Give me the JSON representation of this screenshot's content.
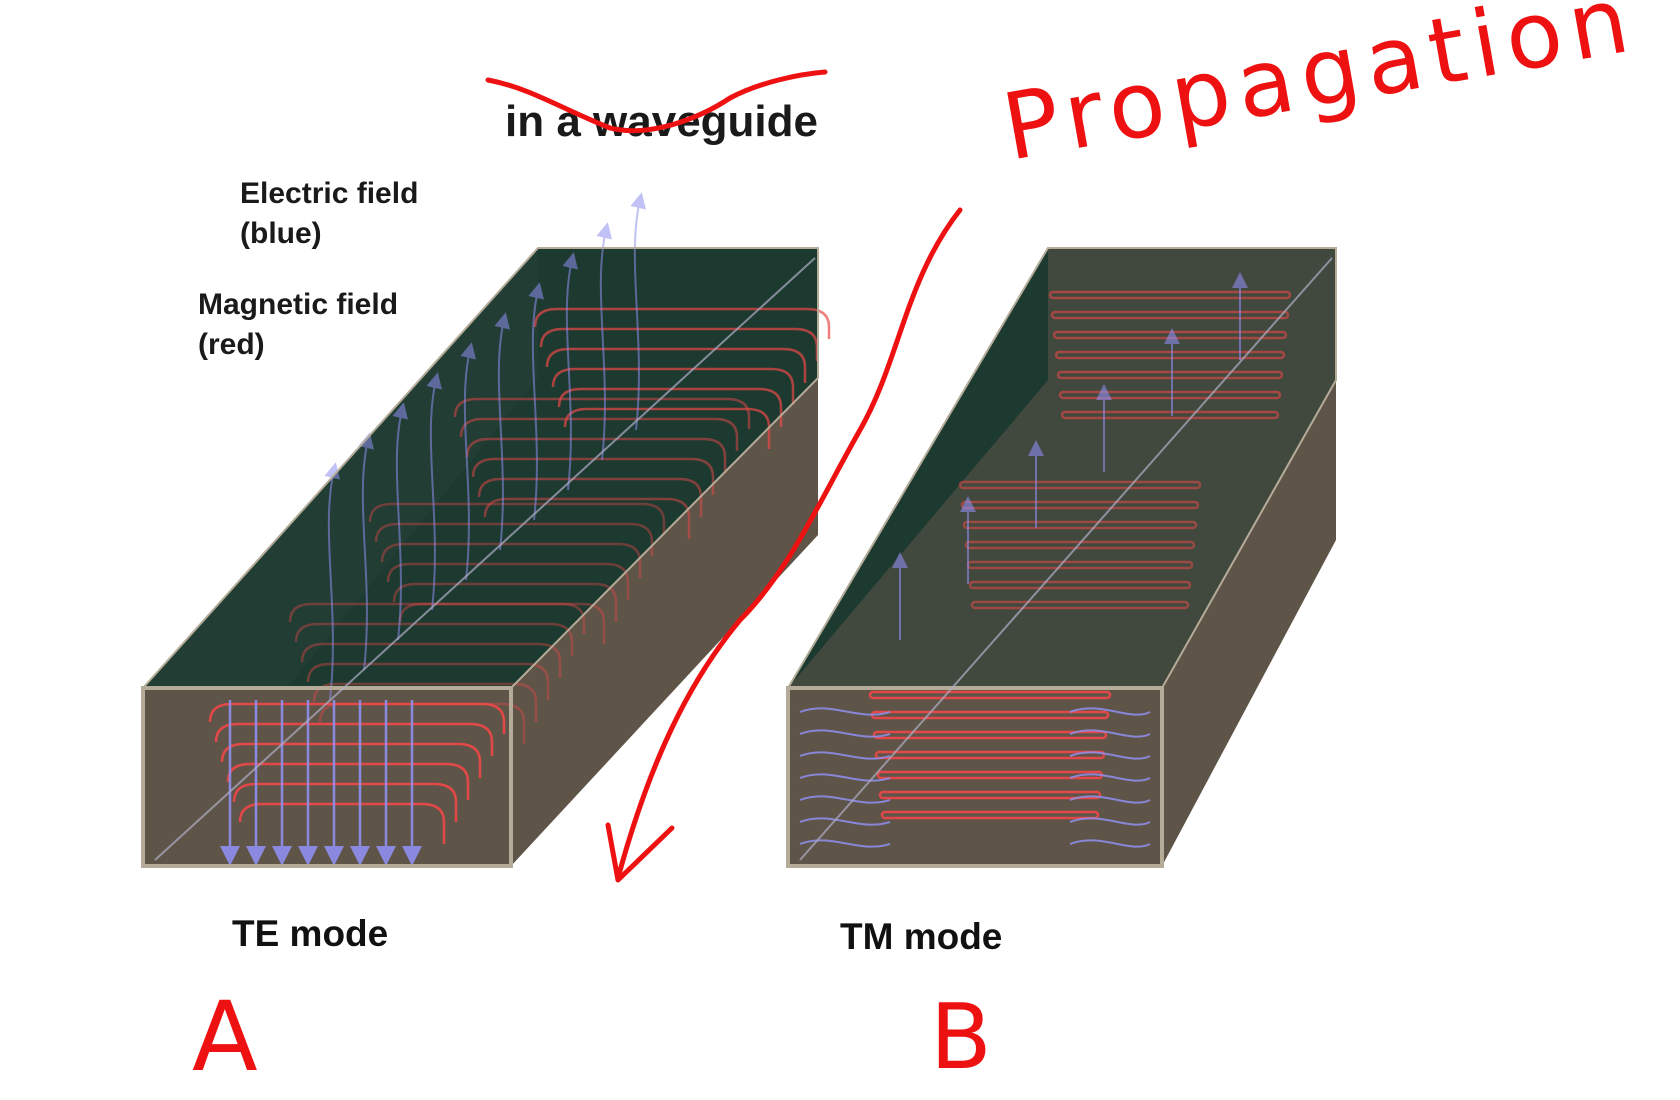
{
  "title": "in a waveguide",
  "callouts": {
    "electric": [
      "Electric field",
      "(blue)"
    ],
    "magnetic": [
      "Magnetic field",
      "(red)"
    ]
  },
  "panels": [
    {
      "id": "te",
      "label": "TE mode",
      "handwritten_letter": "A"
    },
    {
      "id": "tm",
      "label": "TM mode",
      "handwritten_letter": "B"
    }
  ],
  "handwritten": {
    "propagation": "Propagation"
  },
  "colors": {
    "electric_field": "#8f8ff0",
    "magnetic_field": "#e84848",
    "waveguide_wall_dark": "#1d3a30",
    "waveguide_floor": "#5f5448",
    "waveguide_edge": "#b4ab98",
    "ink": "#ee1111"
  }
}
